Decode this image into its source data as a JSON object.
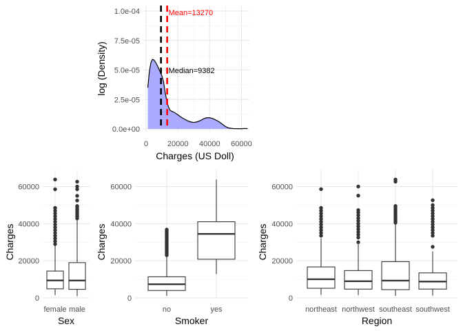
{
  "chart_data": [
    {
      "id": "density",
      "type": "area",
      "xlabel": "Charges (US Doll)",
      "ylabel": "log (Density)",
      "xlim": [
        0,
        65000
      ],
      "ylim": [
        0,
        0.0001
      ],
      "x_ticks": [
        0,
        20000,
        40000,
        60000
      ],
      "x_tick_labels": [
        "0",
        "20000",
        "40000",
        "60000"
      ],
      "y_ticks": [
        0,
        2.5e-05,
        5e-05,
        7.5e-05,
        0.0001
      ],
      "y_tick_labels": [
        "0.0e+00",
        "2.5e-05",
        "5.0e-05",
        "7.5e-05",
        "1.0e-04"
      ],
      "fill_color": "#aaaaff",
      "points": [
        [
          1100,
          3.5e-05
        ],
        [
          2000,
          4.8e-05
        ],
        [
          3000,
          5.6e-05
        ],
        [
          4000,
          5.9e-05
        ],
        [
          5000,
          5.85e-05
        ],
        [
          6000,
          5.65e-05
        ],
        [
          7000,
          5.4e-05
        ],
        [
          8000,
          5.1e-05
        ],
        [
          9000,
          4.8e-05
        ],
        [
          10000,
          4.5e-05
        ],
        [
          11000,
          4e-05
        ],
        [
          12000,
          3.1e-05
        ],
        [
          13000,
          2.4e-05
        ],
        [
          14000,
          1.9e-05
        ],
        [
          15000,
          1.6e-05
        ],
        [
          16000,
          1.5e-05
        ],
        [
          17000,
          1.45e-05
        ],
        [
          18000,
          1.38e-05
        ],
        [
          20000,
          1.2e-05
        ],
        [
          22000,
          1e-05
        ],
        [
          24000,
          8.5e-06
        ],
        [
          26000,
          7e-06
        ],
        [
          28000,
          6e-06
        ],
        [
          30000,
          5.5e-06
        ],
        [
          32000,
          6e-06
        ],
        [
          34000,
          7e-06
        ],
        [
          36000,
          8.5e-06
        ],
        [
          38000,
          9.5e-06
        ],
        [
          40000,
          9.5e-06
        ],
        [
          42000,
          8.8e-06
        ],
        [
          44000,
          7.5e-06
        ],
        [
          46000,
          6e-06
        ],
        [
          48000,
          4e-06
        ],
        [
          50000,
          2e-06
        ],
        [
          52000,
          8e-07
        ],
        [
          55000,
          3e-07
        ],
        [
          58000,
          2e-07
        ],
        [
          60000,
          2e-07
        ],
        [
          62000,
          4e-07
        ],
        [
          63800,
          3e-07
        ]
      ],
      "vlines": [
        {
          "value": 13270,
          "color": "#ff0000",
          "label": "Mean=13270"
        },
        {
          "value": 9382,
          "color": "#000000",
          "label": "Median=9382"
        }
      ]
    },
    {
      "id": "sex",
      "type": "box",
      "xlabel": "Sex",
      "ylabel": "Charges",
      "ylim": [
        0,
        65000
      ],
      "y_ticks": [
        0,
        20000,
        40000,
        60000
      ],
      "y_tick_labels": [
        "0",
        "20000",
        "40000",
        "60000"
      ],
      "categories": [
        "female",
        "male"
      ],
      "boxes": [
        {
          "min": 1607,
          "q1": 4885,
          "median": 9413,
          "q3": 14454,
          "max": 28950,
          "outliers": [
            29000,
            30500,
            32000,
            33500,
            35000,
            36500,
            38000,
            39500,
            41000,
            42500,
            44000,
            45500,
            47000,
            48500,
            58500,
            63770
          ]
        },
        {
          "min": 1122,
          "q1": 4619,
          "median": 9370,
          "q3": 19006,
          "max": 42100,
          "outliers": [
            42800,
            43800,
            44800,
            45800,
            46800,
            47800,
            48800,
            49500,
            52500,
            55000,
            58500,
            60000,
            62600
          ]
        }
      ]
    },
    {
      "id": "smoker",
      "type": "box",
      "xlabel": "Smoker",
      "ylabel": "Charges",
      "ylim": [
        0,
        65000
      ],
      "y_ticks": [
        0,
        20000,
        40000,
        60000
      ],
      "y_tick_labels": [
        "0",
        "20000",
        "40000",
        "60000"
      ],
      "categories": [
        "no",
        "yes"
      ],
      "boxes": [
        {
          "min": 1122,
          "q1": 3986,
          "median": 7345,
          "q3": 11363,
          "max": 22400,
          "outliers": [
            23000,
            23800,
            24600,
            25400,
            26200,
            27000,
            27800,
            28600,
            29400,
            30200,
            31000,
            31800,
            32600,
            33400,
            34200,
            35000,
            35800,
            36800
          ]
        },
        {
          "min": 12830,
          "q1": 20826,
          "median": 34456,
          "q3": 41019,
          "max": 63770,
          "outliers": []
        }
      ]
    },
    {
      "id": "region",
      "type": "box",
      "xlabel": "Region",
      "ylabel": "Charges",
      "ylim": [
        0,
        65000
      ],
      "y_ticks": [
        0,
        20000,
        40000,
        60000
      ],
      "y_tick_labels": [
        "0",
        "20000",
        "40000",
        "60000"
      ],
      "categories": [
        "northeast",
        "northwest",
        "southeast",
        "southwest"
      ],
      "boxes": [
        {
          "min": 1695,
          "q1": 5194,
          "median": 10058,
          "q3": 16687,
          "max": 32100,
          "outliers": [
            33500,
            35000,
            36500,
            38000,
            39500,
            41000,
            42500,
            44000,
            45500,
            47000,
            48500,
            58570
          ]
        },
        {
          "min": 1621,
          "q1": 4720,
          "median": 8966,
          "q3": 14712,
          "max": 29000,
          "outliers": [
            30000,
            32500,
            34000,
            35500,
            37000,
            38500,
            40000,
            41500,
            43000,
            44500,
            46000,
            47300,
            55100,
            60000
          ]
        },
        {
          "min": 1122,
          "q1": 4441,
          "median": 9294,
          "q3": 19526,
          "max": 40000,
          "outliers": [
            40500,
            41500,
            42500,
            43500,
            44500,
            45500,
            46500,
            47500,
            48500,
            49500,
            62600,
            63770
          ]
        },
        {
          "min": 1242,
          "q1": 4751,
          "median": 8799,
          "q3": 13463,
          "max": 25000,
          "outliers": [
            27500,
            33500,
            35000,
            36500,
            38000,
            39500,
            41000,
            42500,
            44000,
            45500,
            47000,
            48500,
            50000,
            52600
          ]
        }
      ]
    }
  ]
}
